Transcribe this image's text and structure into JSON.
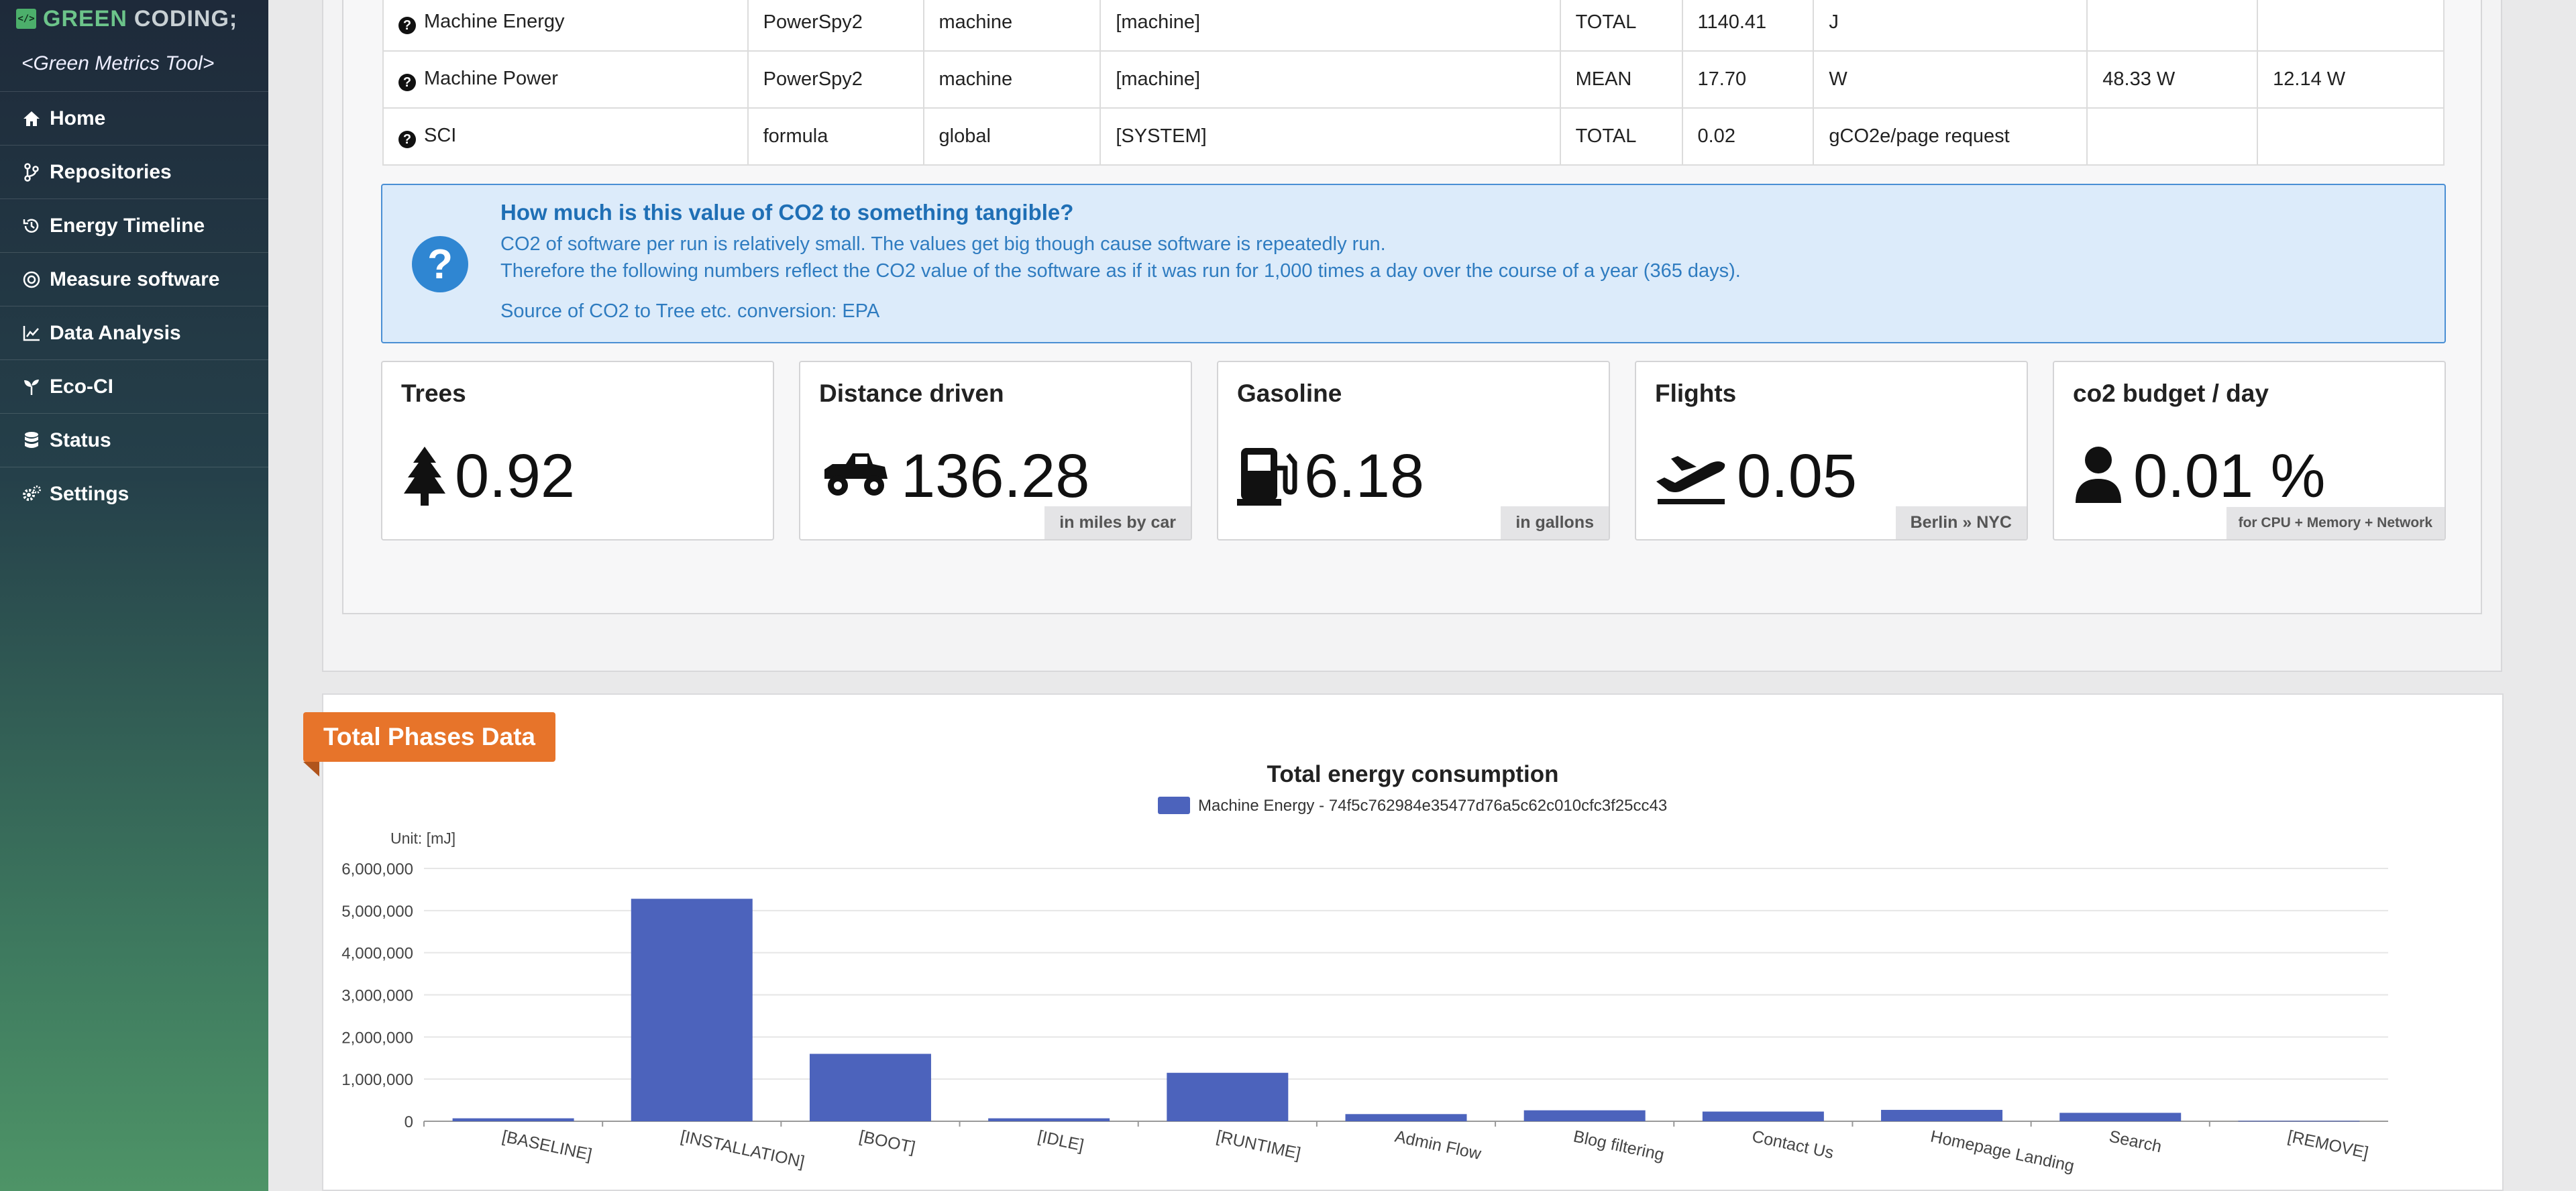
{
  "sidebar": {
    "logo_green": "GREEN",
    "logo_coding": "CODING;",
    "tagline": "<Green Metrics Tool>",
    "items": [
      {
        "label": "Home",
        "icon": "home-icon"
      },
      {
        "label": "Repositories",
        "icon": "branch-icon"
      },
      {
        "label": "Energy Timeline",
        "icon": "history-icon"
      },
      {
        "label": "Measure software",
        "icon": "target-icon"
      },
      {
        "label": "Data Analysis",
        "icon": "chart-line-icon"
      },
      {
        "label": "Eco-CI",
        "icon": "seedling-icon"
      },
      {
        "label": "Status",
        "icon": "database-icon"
      },
      {
        "label": "Settings",
        "icon": "cogs-icon"
      }
    ]
  },
  "metrics_table": {
    "rows": [
      {
        "name": "Machine Energy",
        "provider": "PowerSpy2",
        "scope": "machine",
        "detail": "[machine]",
        "type": "TOTAL",
        "value": "1140.41",
        "unit": "J",
        "stddev": "",
        "extra": ""
      },
      {
        "name": "Machine Power",
        "provider": "PowerSpy2",
        "scope": "machine",
        "detail": "[machine]",
        "type": "MEAN",
        "value": "17.70",
        "unit": "W",
        "stddev": "48.33 W",
        "extra": "12.14 W"
      },
      {
        "name": "SCI",
        "provider": "formula",
        "scope": "global",
        "detail": "[SYSTEM]",
        "type": "TOTAL",
        "value": "0.02",
        "unit": "gCO2e/page request",
        "stddev": "",
        "extra": ""
      }
    ]
  },
  "info_box": {
    "title": "How much is this value of CO2 to something tangible?",
    "line1": "CO2 of software per run is relatively small. The values get big though cause software is repeatedly run.",
    "line2": "Therefore the following numbers reflect the CO2 value of the software as if it was run for 1,000 times a day over the course of a year (365 days).",
    "line3": "Source of CO2 to Tree etc. conversion: EPA"
  },
  "stats": [
    {
      "title": "Trees",
      "value": "0.92",
      "note": "",
      "icon": "tree-icon"
    },
    {
      "title": "Distance driven",
      "value": "136.28",
      "note": "in miles by car",
      "icon": "car-icon"
    },
    {
      "title": "Gasoline",
      "value": "6.18",
      "note": "in gallons",
      "icon": "gas-pump-icon"
    },
    {
      "title": "Flights",
      "value": "0.05",
      "note": "Berlin » NYC",
      "icon": "plane-departure-icon"
    },
    {
      "title": "co2 budget / day",
      "value": "0.01 %",
      "note": "for CPU + Memory + Network",
      "icon": "user-icon"
    }
  ],
  "phases": {
    "ribbon": "Total Phases Data"
  },
  "chart_data": {
    "type": "bar",
    "title": "Total energy consumption",
    "unit_label": "Unit: [mJ]",
    "series": [
      {
        "name": "Machine Energy - 74f5c762984e35477d76a5c62c010cfc3f25cc43",
        "color": "#4c63bc",
        "values": [
          70000,
          5280000,
          1600000,
          70000,
          1150000,
          170000,
          260000,
          230000,
          270000,
          200000,
          10000
        ]
      }
    ],
    "categories": [
      "[BASELINE]",
      "[INSTALLATION]",
      "[BOOT]",
      "[IDLE]",
      "[RUNTIME]",
      "Admin Flow",
      "Blog filtering",
      "Contact Us",
      "Homepage Landing",
      "Search",
      "[REMOVE]"
    ],
    "y_ticks": [
      "0",
      "1,000,000",
      "2,000,000",
      "3,000,000",
      "4,000,000",
      "5,000,000",
      "6,000,000"
    ],
    "ylim": [
      0,
      6000000
    ],
    "grid": true,
    "legend_position": "top"
  }
}
